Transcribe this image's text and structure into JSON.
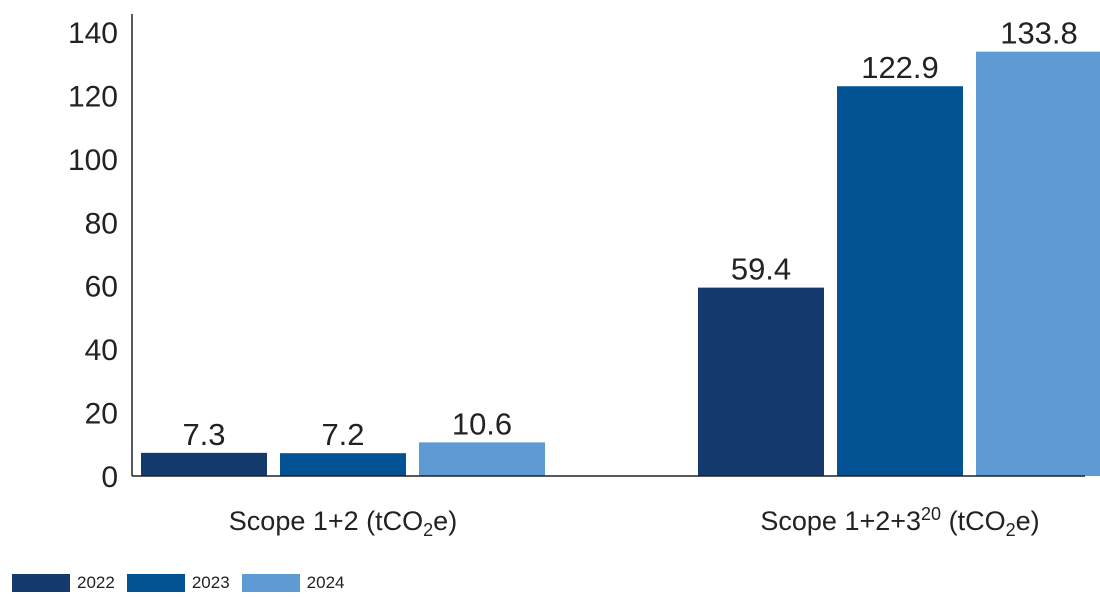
{
  "chart_data": {
    "type": "bar",
    "categories": [
      {
        "base": "Scope 1+2 (tCO",
        "sub": "2",
        "tail": "e)"
      },
      {
        "base": "Scope 1+2+3",
        "sup": "20",
        "mid": " (tCO",
        "sub": "2",
        "tail": "e)"
      }
    ],
    "series": [
      {
        "name": "2022",
        "color": "#143A6E",
        "values": [
          7.3,
          59.4
        ]
      },
      {
        "name": "2023",
        "color": "#035394",
        "values": [
          7.2,
          122.9
        ]
      },
      {
        "name": "2024",
        "color": "#5E9AD3",
        "values": [
          10.6,
          133.8
        ]
      }
    ],
    "yticks": [
      "0",
      "20",
      "40",
      "60",
      "80",
      "100",
      "120",
      "140"
    ],
    "ylim": [
      0,
      140
    ],
    "grid": false,
    "legend_position": "bottom-left"
  }
}
